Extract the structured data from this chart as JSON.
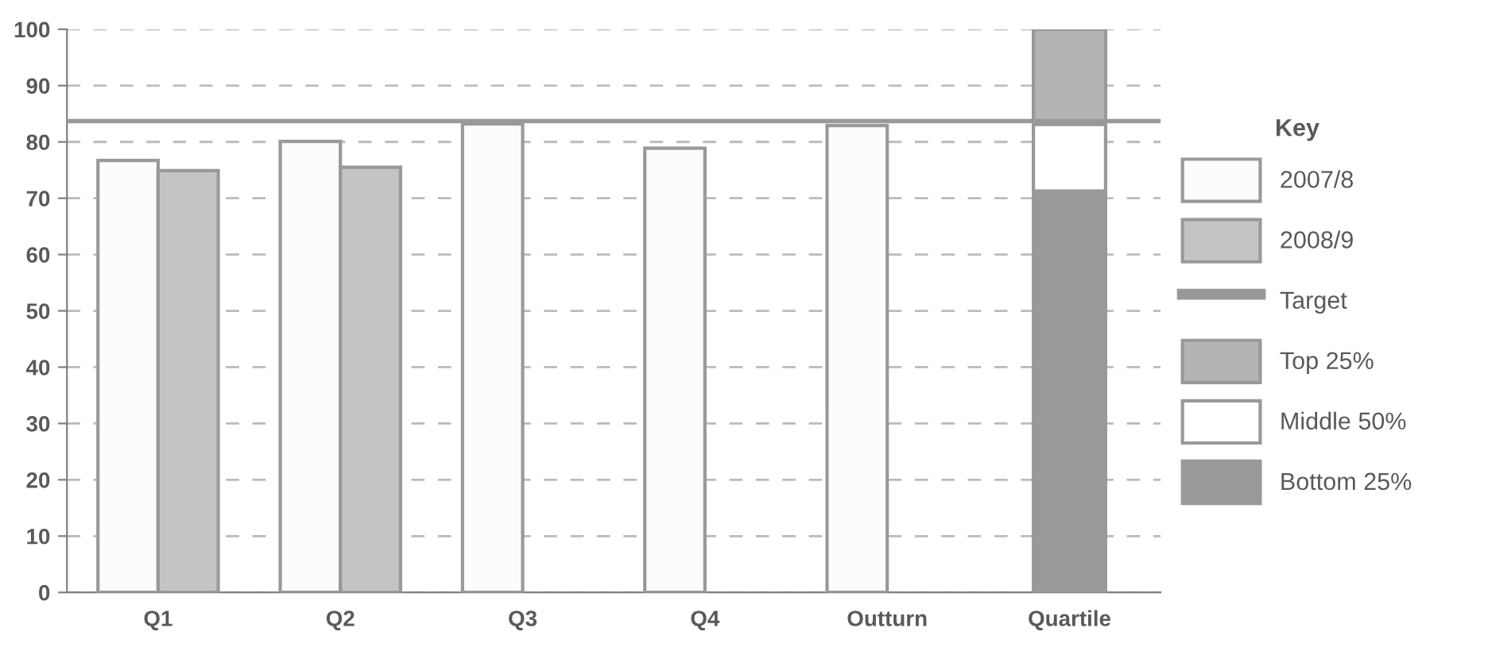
{
  "chart_data": {
    "type": "bar",
    "legend_title": "Key",
    "legend": "right",
    "grid": "y",
    "categories": [
      "Q1",
      "Q2",
      "Q3",
      "Q4",
      "Outturn",
      "Quartile"
    ],
    "series": [
      {
        "name": "2007/8",
        "color": "#fcfcfc",
        "values": [
          76.7,
          80.1,
          83.2,
          78.9,
          82.9,
          null
        ]
      },
      {
        "name": "2008/9",
        "color": "#c4c4c4",
        "values": [
          74.9,
          75.5,
          null,
          null,
          null,
          null
        ]
      },
      {
        "name": "Bottom 25%",
        "color": "#999999",
        "values": [
          null,
          null,
          null,
          null,
          null,
          71.3
        ],
        "base": [
          null,
          null,
          null,
          null,
          null,
          0
        ]
      },
      {
        "name": "Middle 50%",
        "color": "#ffffff",
        "values": [
          null,
          null,
          null,
          null,
          null,
          11.8
        ],
        "base": [
          null,
          null,
          null,
          null,
          null,
          71.3
        ]
      },
      {
        "name": "Top 25%",
        "color": "#b4b4b4",
        "values": [
          null,
          null,
          null,
          null,
          null,
          16.9
        ],
        "base": [
          null,
          null,
          null,
          null,
          null,
          83.1
        ]
      }
    ],
    "ref_lines": [
      {
        "axis": "y",
        "value": 83.7,
        "label": "Target",
        "color": "#999999",
        "line_style": "solid"
      }
    ],
    "ylim": [
      0,
      100
    ],
    "yticks": [
      0,
      10,
      20,
      30,
      40,
      50,
      60,
      70,
      80,
      90,
      100
    ]
  }
}
